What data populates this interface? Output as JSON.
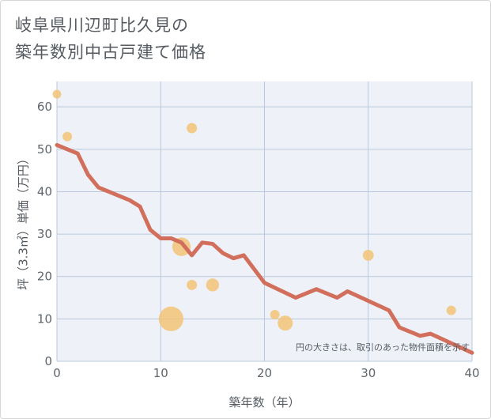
{
  "title_line1": "岐阜県川辺町比久見の",
  "title_line2": "築年数別中古戸建て価格",
  "chart_data": {
    "type": "scatter",
    "xlabel": "築年数（年）",
    "ylabel": "坪（3.3㎡）単価（万円）",
    "xlim": [
      0,
      40
    ],
    "ylim": [
      0,
      66
    ],
    "xticks": [
      0,
      10,
      20,
      30,
      40
    ],
    "yticks": [
      0,
      10,
      20,
      30,
      40,
      50,
      60
    ],
    "grid": true,
    "note": "円の大きさは、取引のあった物件面積を示す",
    "colors": {
      "bubble": "#f2c478",
      "trend": "#d26f5c",
      "grid": "#b9c8dc",
      "plot_background": "#eef2f8"
    },
    "points": [
      {
        "x": 0,
        "y": 63,
        "size": 1
      },
      {
        "x": 1,
        "y": 53,
        "size": 1.2
      },
      {
        "x": 11,
        "y": 10,
        "size": 8
      },
      {
        "x": 12,
        "y": 27,
        "size": 4.5
      },
      {
        "x": 13,
        "y": 55,
        "size": 1.4
      },
      {
        "x": 13,
        "y": 18,
        "size": 1.4
      },
      {
        "x": 15,
        "y": 18,
        "size": 2.2
      },
      {
        "x": 21,
        "y": 11,
        "size": 1.2
      },
      {
        "x": 22,
        "y": 9,
        "size": 3
      },
      {
        "x": 30,
        "y": 25,
        "size": 1.6
      },
      {
        "x": 38,
        "y": 12,
        "size": 1.2
      }
    ],
    "trend": {
      "x": [
        0,
        2,
        3,
        4,
        5,
        6,
        7,
        8,
        9,
        10,
        11,
        12,
        13,
        14,
        15,
        16,
        17,
        18,
        20,
        23,
        25,
        27,
        28,
        32,
        33,
        35,
        36,
        40
      ],
      "y": [
        51,
        49,
        44,
        41,
        40,
        39,
        38,
        36.5,
        31,
        29,
        29,
        28,
        25,
        28,
        27.7,
        25.5,
        24.3,
        25,
        18.5,
        15,
        17,
        15,
        16.5,
        12,
        8,
        6,
        6.5,
        2
      ]
    }
  }
}
